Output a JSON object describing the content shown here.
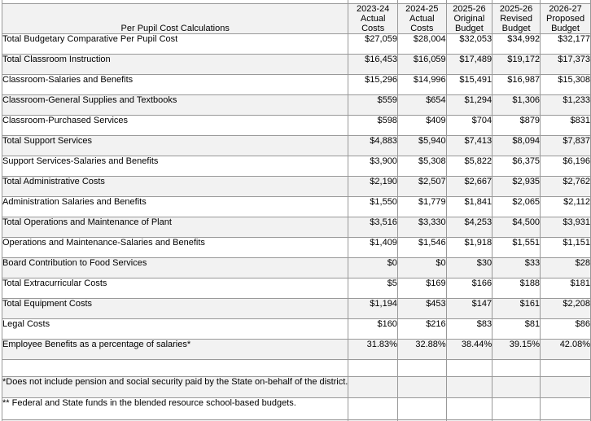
{
  "table": {
    "label_header": "Per Pupil Cost Calculations",
    "column_headers": [
      "2023-24\nActual\nCosts",
      "2024-25\nActual\nCosts",
      "2025-26\nOriginal\nBudget",
      "2025-26\nRevised\nBudget",
      "2026-27\nProposed\nBudget"
    ],
    "rows": [
      {
        "label": "Total Budgetary Comparative Per Pupil Cost",
        "values": [
          "$27,059",
          "$28,004",
          "$32,053",
          "$34,992",
          "$32,177"
        ],
        "shaded": false
      },
      {
        "label": "Total Classroom Instruction",
        "values": [
          "$16,453",
          "$16,059",
          "$17,489",
          "$19,172",
          "$17,373"
        ],
        "shaded": true
      },
      {
        "label": "Classroom-Salaries and Benefits",
        "values": [
          "$15,296",
          "$14,996",
          "$15,491",
          "$16,987",
          "$15,308"
        ],
        "shaded": false
      },
      {
        "label": "Classroom-General Supplies and Textbooks",
        "values": [
          "$559",
          "$654",
          "$1,294",
          "$1,306",
          "$1,233"
        ],
        "shaded": true
      },
      {
        "label": "Classroom-Purchased Services",
        "values": [
          "$598",
          "$409",
          "$704",
          "$879",
          "$831"
        ],
        "shaded": false
      },
      {
        "label": "Total Support Services",
        "values": [
          "$4,883",
          "$5,940",
          "$7,413",
          "$8,094",
          "$7,837"
        ],
        "shaded": true
      },
      {
        "label": "Support Services-Salaries and Benefits",
        "values": [
          "$3,900",
          "$5,308",
          "$5,822",
          "$6,375",
          "$6,196"
        ],
        "shaded": false
      },
      {
        "label": "Total Administrative Costs",
        "values": [
          "$2,190",
          "$2,507",
          "$2,667",
          "$2,935",
          "$2,762"
        ],
        "shaded": true
      },
      {
        "label": "Administration Salaries and Benefits",
        "values": [
          "$1,550",
          "$1,779",
          "$1,841",
          "$2,065",
          "$2,112"
        ],
        "shaded": false
      },
      {
        "label": "Total Operations and Maintenance of Plant",
        "values": [
          "$3,516",
          "$3,330",
          "$4,253",
          "$4,500",
          "$3,931"
        ],
        "shaded": true
      },
      {
        "label": "Operations and Maintenance-Salaries and Benefits",
        "values": [
          "$1,409",
          "$1,546",
          "$1,918",
          "$1,551",
          "$1,151"
        ],
        "shaded": false
      },
      {
        "label": "Board Contribution to Food Services",
        "values": [
          "$0",
          "$0",
          "$30",
          "$33",
          "$28"
        ],
        "shaded": true
      },
      {
        "label": "Total Extracurricular Costs",
        "values": [
          "$5",
          "$169",
          "$166",
          "$188",
          "$181"
        ],
        "shaded": false
      },
      {
        "label": "Total Equipment Costs",
        "values": [
          "$1,194",
          "$453",
          "$147",
          "$161",
          "$2,208"
        ],
        "shaded": true
      },
      {
        "label": "Legal Costs",
        "values": [
          "$160",
          "$216",
          "$83",
          "$81",
          "$86"
        ],
        "shaded": false
      },
      {
        "label": "Employee Benefits as a percentage of salaries*",
        "values": [
          "31.83%",
          "32.88%",
          "38.44%",
          "39.15%",
          "42.08%"
        ],
        "shaded": true
      }
    ],
    "footnotes": [
      {
        "text": "*Does not include pension and social security paid by the State on-behalf of the district.",
        "shaded": true
      },
      {
        "text": "** Federal and State funds in the blended resource school-based budgets.",
        "shaded": false
      }
    ]
  },
  "colors": {
    "shaded_row": "#f2f2f2",
    "border": "#999999",
    "text": "#000000",
    "background": "#ffffff"
  }
}
